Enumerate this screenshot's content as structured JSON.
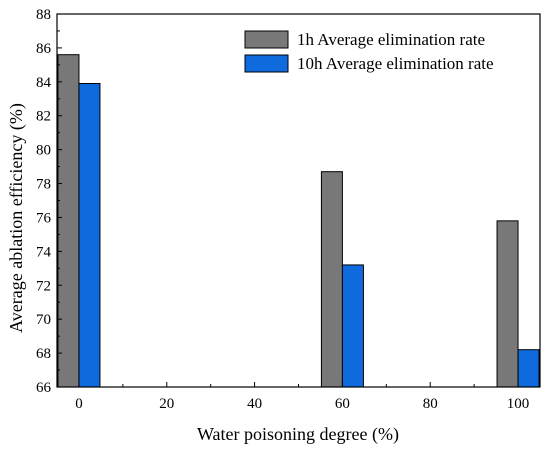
{
  "chart_data": {
    "type": "bar",
    "title": "",
    "xlabel": "Water poisoning degree (%)",
    "ylabel": "Average ablation efficiency (%)",
    "x": [
      0,
      60,
      100
    ],
    "xlim": [
      -5,
      105
    ],
    "ylim": [
      66,
      88
    ],
    "xticks": [
      0,
      20,
      40,
      60,
      80,
      100
    ],
    "yticks": [
      66,
      68,
      70,
      72,
      74,
      76,
      78,
      80,
      82,
      84,
      86,
      88
    ],
    "legend_position": "top-right",
    "grid": false,
    "series": [
      {
        "name": "1h Average elimination rate",
        "color": "#787878",
        "values": [
          85.6,
          78.7,
          75.8
        ]
      },
      {
        "name": "10h Average elimination rate",
        "color": "#0f6bdd",
        "values": [
          83.9,
          73.2,
          68.2
        ]
      }
    ]
  }
}
